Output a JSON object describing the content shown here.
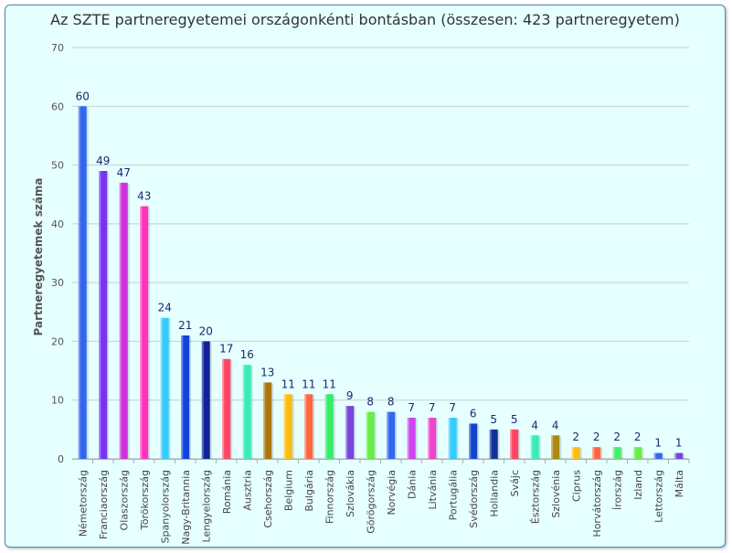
{
  "chart_data": {
    "type": "bar",
    "title": "Az SZTE partneregyetemei országonkénti bontásban (összesen: 423 partneregyetem)",
    "ylabel": "Partneregyetemek száma",
    "xlabel": "",
    "ylim": [
      0,
      70
    ],
    "yticks": [
      0,
      10,
      20,
      30,
      40,
      50,
      60,
      70
    ],
    "grid": true,
    "categories": [
      "Németország",
      "Franciaország",
      "Olaszország",
      "Törökország",
      "Spanyolország",
      "Nagy-Britannia",
      "Lengyelország",
      "Románia",
      "Ausztria",
      "Csehország",
      "Belgium",
      "Bulgária",
      "Finnország",
      "Szlovákia",
      "Görögország",
      "Norvégia",
      "Dánia",
      "Litvánia",
      "Portugália",
      "Svédország",
      "Hollandia",
      "Svájc",
      "Észtország",
      "Szlovénia",
      "Ciprus",
      "Horvátország",
      "Írország",
      "Izland",
      "Lettország",
      "Málta"
    ],
    "values": [
      60,
      49,
      47,
      43,
      24,
      21,
      20,
      17,
      16,
      13,
      11,
      11,
      11,
      9,
      8,
      8,
      7,
      7,
      7,
      6,
      5,
      5,
      4,
      4,
      2,
      2,
      2,
      2,
      1,
      1
    ],
    "colors": [
      "#3366ee",
      "#7733ee",
      "#cc33dd",
      "#ff33bb",
      "#33ccff",
      "#1144dd",
      "#112299",
      "#ff4466",
      "#33eebb",
      "#aa7711",
      "#ffbb11",
      "#ff6644",
      "#33ee66",
      "#7744dd",
      "#66ee44",
      "#3366ee",
      "#cc44ee",
      "#ee44cc",
      "#33ccff",
      "#1144cc",
      "#113399",
      "#ff4466",
      "#33eebb",
      "#aa8811",
      "#ffbb11",
      "#ff6644",
      "#44ee66",
      "#66ee44",
      "#3366ee",
      "#7744dd"
    ]
  }
}
